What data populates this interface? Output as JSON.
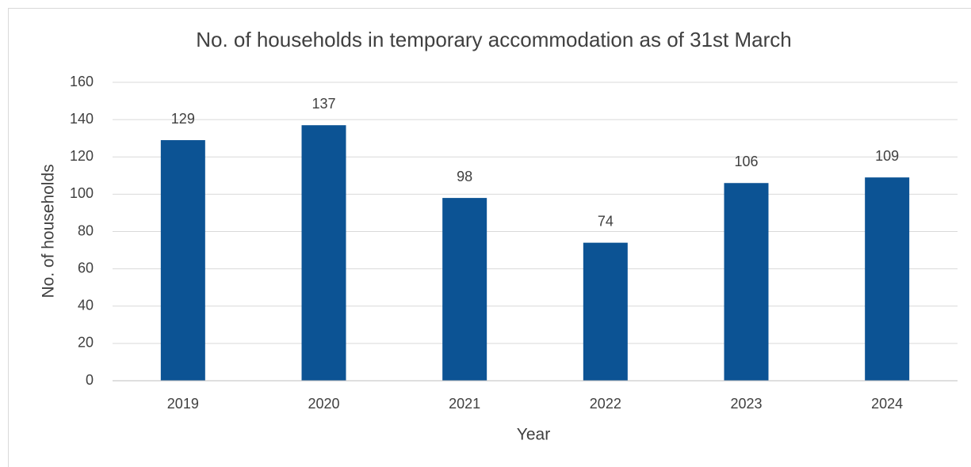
{
  "chart_data": {
    "type": "bar",
    "title": "No. of households in temporary accommodation as of 31st March",
    "x_label": "Year",
    "y_label": "No. of households",
    "categories": [
      "2019",
      "2020",
      "2021",
      "2022",
      "2023",
      "2024"
    ],
    "values": [
      129,
      137,
      98,
      74,
      106,
      109
    ],
    "color": "#0c5394",
    "ylim": [
      0,
      160
    ],
    "yticks": [
      0,
      20,
      40,
      60,
      80,
      100,
      120,
      140,
      160
    ],
    "grid": true
  }
}
